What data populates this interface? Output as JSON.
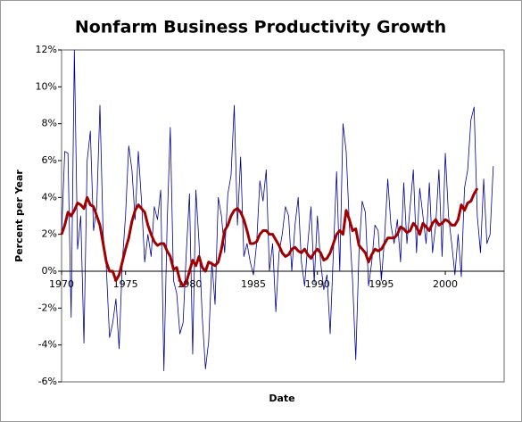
{
  "chart_data": {
    "type": "line",
    "title": "Nonfarm Business Productivity Growth",
    "xlabel": "Date",
    "ylabel": "Percent per Year",
    "x": [
      1970,
      1970.25,
      1970.5,
      1970.75,
      1971,
      1971.25,
      1971.5,
      1971.75,
      1972,
      1972.25,
      1972.5,
      1972.75,
      1973,
      1973.25,
      1973.5,
      1973.75,
      1974,
      1974.25,
      1974.5,
      1974.75,
      1975,
      1975.25,
      1975.5,
      1975.75,
      1976,
      1976.25,
      1976.5,
      1976.75,
      1977,
      1977.25,
      1977.5,
      1977.75,
      1978,
      1978.25,
      1978.5,
      1978.75,
      1979,
      1979.25,
      1979.5,
      1979.75,
      1980,
      1980.25,
      1980.5,
      1980.75,
      1981,
      1981.25,
      1981.5,
      1981.75,
      1982,
      1982.25,
      1982.5,
      1982.75,
      1983,
      1983.25,
      1983.5,
      1983.75,
      1984,
      1984.25,
      1984.5,
      1984.75,
      1985,
      1985.25,
      1985.5,
      1985.75,
      1986,
      1986.25,
      1986.5,
      1986.75,
      1987,
      1987.25,
      1987.5,
      1987.75,
      1988,
      1988.25,
      1988.5,
      1988.75,
      1989,
      1989.25,
      1989.5,
      1989.75,
      1990,
      1990.25,
      1990.5,
      1990.75,
      1991,
      1991.25,
      1991.5,
      1991.75,
      1992,
      1992.25,
      1992.5,
      1992.75,
      1993,
      1993.25,
      1993.5,
      1993.75,
      1994,
      1994.25,
      1994.5,
      1994.75,
      1995,
      1995.25,
      1995.5,
      1995.75,
      1996,
      1996.25,
      1996.5,
      1996.75,
      1997,
      1997.25,
      1997.5,
      1997.75,
      1998,
      1998.25,
      1998.5,
      1998.75,
      1999,
      1999.25,
      1999.5,
      1999.75,
      2000,
      2000.25,
      2000.5,
      2000.75,
      2001,
      2001.25,
      2001.5,
      2001.75,
      2002,
      2002.25,
      2002.5,
      2002.75,
      2003,
      2003.25,
      2003.5,
      2003.75
    ],
    "series": [
      {
        "color": "#000090",
        "values": [
          2.0,
          6.5,
          6.4,
          -2.5,
          12.0,
          1.2,
          3.0,
          -3.9,
          6.0,
          7.6,
          2.2,
          3.5,
          9.0,
          2.0,
          0.2,
          -3.6,
          -2.8,
          -1.5,
          -4.2,
          0.5,
          3.0,
          6.8,
          5.5,
          2.8,
          6.5,
          3.8,
          0.5,
          2.0,
          0.8,
          3.5,
          2.8,
          4.4,
          -5.4,
          2.5,
          7.8,
          -0.5,
          -1.2,
          -3.4,
          -2.8,
          1.0,
          4.2,
          -4.5,
          4.4,
          1.5,
          -2.5,
          -5.3,
          -3.8,
          0.5,
          -1.8,
          4.0,
          3.0,
          1.0,
          4.2,
          5.2,
          9.0,
          2.5,
          6.2,
          0.8,
          1.5,
          0.5,
          -0.2,
          1.5,
          4.9,
          3.8,
          5.5,
          0.0,
          1.5,
          -2.2,
          1.0,
          2.0,
          3.5,
          3.0,
          0.0,
          2.5,
          4.0,
          0.5,
          -0.8,
          1.5,
          3.5,
          -0.6,
          3.0,
          0.5,
          -1.0,
          -0.2,
          -3.4,
          1.0,
          5.4,
          0.0,
          8.0,
          6.5,
          2.5,
          -0.5,
          -4.8,
          1.0,
          3.8,
          3.2,
          -0.8,
          0.5,
          2.5,
          2.2,
          -0.5,
          1.8,
          5.0,
          2.5,
          1.5,
          2.8,
          0.5,
          4.8,
          1.5,
          3.5,
          5.5,
          1.0,
          4.5,
          3.0,
          1.5,
          4.8,
          1.0,
          2.5,
          5.5,
          0.8,
          6.4,
          3.0,
          1.5,
          -0.2,
          2.0,
          -0.3,
          4.5,
          5.5,
          8.2,
          8.9,
          3.0,
          1.0,
          5.0,
          1.5,
          2.0,
          5.7
        ]
      },
      {
        "color": "#a00000",
        "values": [
          2.0,
          2.5,
          3.2,
          3.0,
          3.3,
          3.7,
          3.6,
          3.4,
          4.0,
          3.6,
          3.5,
          3.0,
          2.5,
          1.5,
          0.5,
          0.0,
          0.0,
          -0.5,
          -0.2,
          0.5,
          1.2,
          1.8,
          2.7,
          3.3,
          3.6,
          3.4,
          3.2,
          2.5,
          2.0,
          1.6,
          1.4,
          1.5,
          1.5,
          1.1,
          0.8,
          0.1,
          0.2,
          -0.5,
          -0.8,
          -0.6,
          0.0,
          0.6,
          0.3,
          0.8,
          0.2,
          0.0,
          0.5,
          0.4,
          0.3,
          0.5,
          1.2,
          2.2,
          2.5,
          3.0,
          3.3,
          3.4,
          3.2,
          2.8,
          2.2,
          1.5,
          1.5,
          1.6,
          2.0,
          2.2,
          2.2,
          2.0,
          2.0,
          1.7,
          1.4,
          1.0,
          0.8,
          0.9,
          1.2,
          1.3,
          1.1,
          1.0,
          1.2,
          0.9,
          0.7,
          1.0,
          1.2,
          1.0,
          0.6,
          0.7,
          1.0,
          1.5,
          2.0,
          2.2,
          2.0,
          3.3,
          2.8,
          2.2,
          2.3,
          1.4,
          1.2,
          1.0,
          0.5,
          0.9,
          1.2,
          1.1,
          1.2,
          1.5,
          1.8,
          1.8,
          1.8,
          2.0,
          2.4,
          2.3,
          2.1,
          2.2,
          2.6,
          2.4,
          2.0,
          2.6,
          2.4,
          2.2,
          2.6,
          2.8,
          2.5,
          2.6,
          2.8,
          2.7,
          2.5,
          2.5,
          2.8,
          3.6,
          3.3,
          3.7,
          3.8,
          4.2,
          4.5,
          null,
          null,
          null,
          null,
          null
        ]
      }
    ],
    "xlim": [
      1970,
      2004.6
    ],
    "xticks": [
      1970,
      1975,
      1980,
      1985,
      1990,
      1995,
      2000
    ],
    "ylim": [
      -6,
      12
    ],
    "yticks": [
      {
        "value": -6,
        "label": "-6%"
      },
      {
        "value": -4,
        "label": "-4%"
      },
      {
        "value": -2,
        "label": "-2%"
      },
      {
        "value": 0,
        "label": "0%"
      },
      {
        "value": 2,
        "label": "2%"
      },
      {
        "value": 4,
        "label": "4%"
      },
      {
        "value": 6,
        "label": "6%"
      },
      {
        "value": 8,
        "label": "8%"
      },
      {
        "value": 10,
        "label": "10%"
      },
      {
        "value": 12,
        "label": "12%"
      }
    ],
    "grid": false
  }
}
